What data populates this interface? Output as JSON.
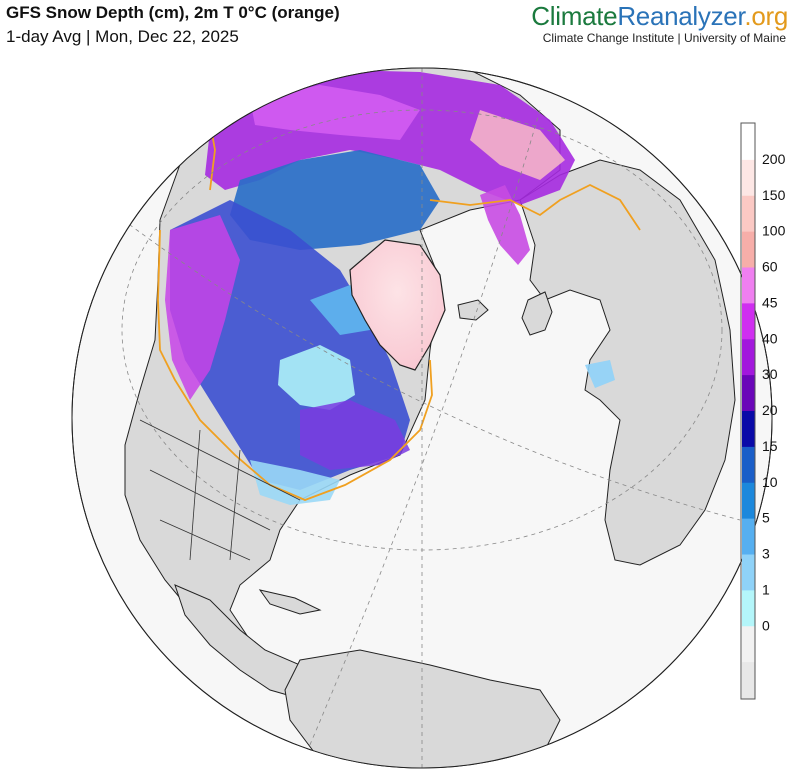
{
  "header": {
    "title": "GFS Snow Depth (cm), 2m T 0°C (orange)",
    "subtitle": "1-day Avg | Mon, Dec 22, 2025"
  },
  "brand": {
    "part1": "Climate",
    "part2": "Reanalyzer",
    "part3": ".org",
    "tagline": "Climate Change Institute | University of Maine",
    "colors": {
      "climate": "#1b7a3e",
      "reanalyzer": "#2a73b8",
      "org": "#e39a1c"
    }
  },
  "map": {
    "projection": "orthographic-north-hemisphere",
    "ocean_color": "#f7f7f7",
    "land_color": "#d9d9d9",
    "freezing_line_color": "#f0a020"
  },
  "legend": {
    "labels": [
      "200",
      "150",
      "100",
      "60",
      "45",
      "40",
      "30",
      "20",
      "15",
      "10",
      "5",
      "3",
      "1",
      "0"
    ],
    "colors": [
      "#ffffff",
      "#fde7e5",
      "#fbc9c4",
      "#f7aea9",
      "#ef7ff0",
      "#cf2ef0",
      "#a218dc",
      "#6a06b8",
      "#0a0aa8",
      "#1a5ec8",
      "#1c88dc",
      "#56aff0",
      "#8fd2f8",
      "#b4f6fa",
      "#f2f2f2",
      "#e8e8e8"
    ]
  }
}
